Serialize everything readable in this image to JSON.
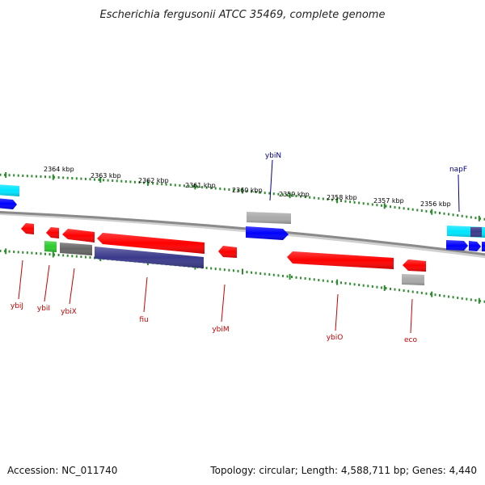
{
  "title": "Escherichia fergusonii ATCC 35469, complete genome",
  "footer": {
    "accession": "Accession: NC_011740",
    "topology": "Topology: circular; Length: 4,588,711 bp; Genes: 4,440"
  },
  "colors": {
    "backbone": "#8a8a8a",
    "tick": "#2e8b2e",
    "label_plus": "#00008b",
    "label_minus": "#cc0000",
    "red": "#ff0000",
    "blue": "#0000ff",
    "cyan": "#00e5ff",
    "gray": "#a9a9a9",
    "dark_gray": "#666666",
    "green": "#2ecc2e",
    "slate": "#3a3a8c"
  },
  "ticks": [
    {
      "label": "2364 kbp"
    },
    {
      "label": "2363 kbp"
    },
    {
      "label": "2362 kbp"
    },
    {
      "label": "2361 kbp"
    },
    {
      "label": "2360 kbp"
    },
    {
      "label": "2359 kbp"
    },
    {
      "label": "2358 kbp"
    },
    {
      "label": "2357 kbp"
    },
    {
      "label": "2356 kbp"
    }
  ],
  "gene_labels": [
    {
      "name": "ybiN",
      "strand": "plus"
    },
    {
      "name": "napF",
      "strand": "plus"
    },
    {
      "name": "ybiJ",
      "strand": "minus"
    },
    {
      "name": "ybiI",
      "strand": "minus"
    },
    {
      "name": "ybiX",
      "strand": "minus"
    },
    {
      "name": "fiu",
      "strand": "minus"
    },
    {
      "name": "ybiM",
      "strand": "minus"
    },
    {
      "name": "ybiO",
      "strand": "minus"
    },
    {
      "name": "eco",
      "strand": "minus"
    }
  ]
}
